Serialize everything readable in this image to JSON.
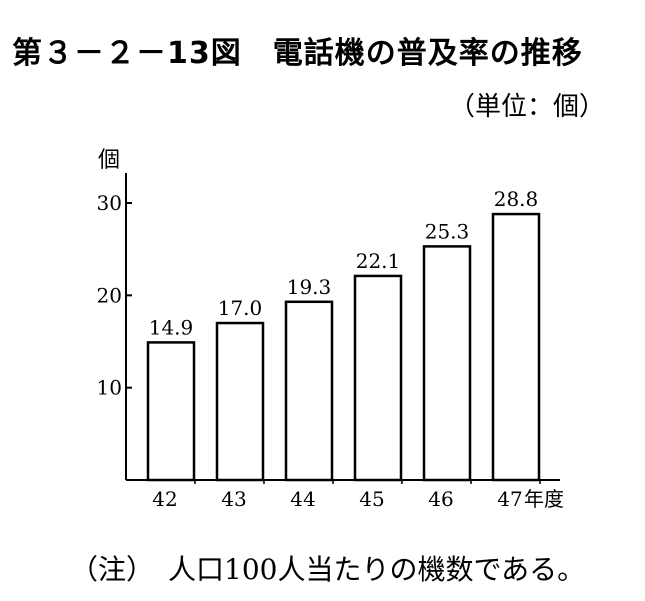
{
  "title": "第３－２－13図　電話機の普及率の推移",
  "unit_label": "（単位：個）",
  "note": "（注）　人口100人当たりの機数である。",
  "chart_data": {
    "type": "bar",
    "title": "第３－２－13図　電話機の普及率の推移",
    "ylabel": "個",
    "xlabel": "年度",
    "categories": [
      "42",
      "43",
      "44",
      "45",
      "46",
      "47"
    ],
    "values": [
      14.9,
      17.0,
      19.3,
      22.1,
      25.3,
      28.8
    ],
    "data_labels": [
      "14.9",
      "17.0",
      "19.3",
      "22.1",
      "25.3",
      "28.8"
    ],
    "y_ticks": [
      "10",
      "20",
      "30"
    ],
    "ylim": [
      0,
      30
    ],
    "grid": false,
    "legend": "none",
    "bar_color": "#ffffff",
    "stroke_color": "#000000"
  }
}
